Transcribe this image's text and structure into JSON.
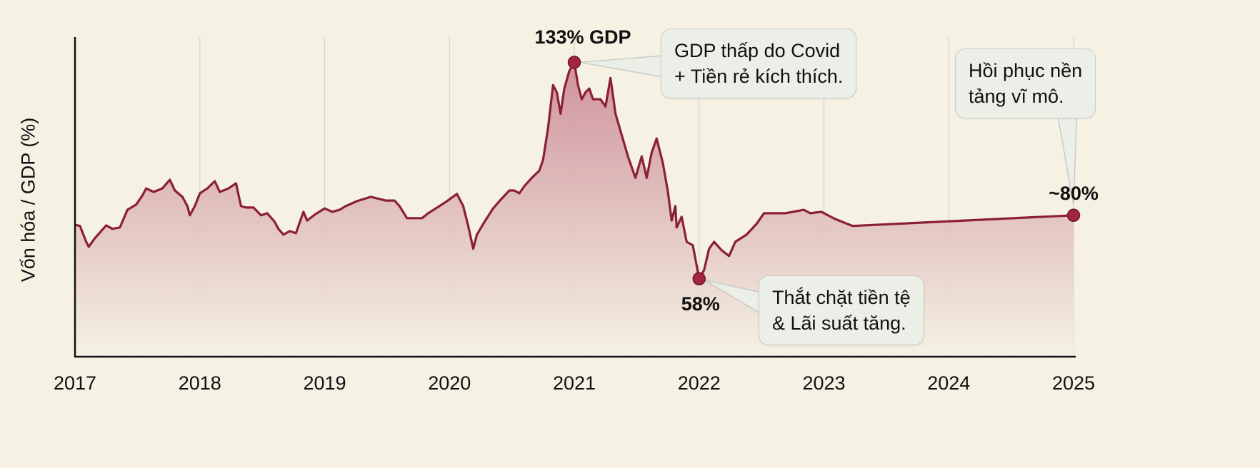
{
  "chart_data": {
    "type": "area",
    "title": "",
    "xlabel": "",
    "ylabel": "Vốn hóa / GDP (%)",
    "xlim": [
      2017,
      2025
    ],
    "ylim": [
      31,
      141
    ],
    "x_ticks": [
      "2017",
      "2018",
      "2019",
      "2020",
      "2021",
      "2022",
      "2023",
      "2024",
      "2025"
    ],
    "grid": "vertical",
    "colors": {
      "line": "#8b1f38",
      "marker": "#a3263f",
      "fill_top": "#c98390",
      "fill_bottom": "#f5f2e4",
      "background": "#f5f2e4",
      "grid": "#d8d6cc"
    },
    "series": [
      {
        "name": "Vốn hóa / GDP",
        "points": [
          [
            2017.0,
            76.7
          ],
          [
            2017.04,
            76.3
          ],
          [
            2017.09,
            70.8
          ],
          [
            2017.11,
            69.1
          ],
          [
            2017.16,
            72.1
          ],
          [
            2017.25,
            76.5
          ],
          [
            2017.3,
            75.3
          ],
          [
            2017.36,
            75.8
          ],
          [
            2017.42,
            81.9
          ],
          [
            2017.49,
            83.7
          ],
          [
            2017.54,
            86.9
          ],
          [
            2017.57,
            89.3
          ],
          [
            2017.63,
            88.1
          ],
          [
            2017.7,
            89.3
          ],
          [
            2017.76,
            92.3
          ],
          [
            2017.8,
            88.6
          ],
          [
            2017.86,
            86.4
          ],
          [
            2017.9,
            83.2
          ],
          [
            2017.92,
            80.0
          ],
          [
            2017.96,
            83.2
          ],
          [
            2018.0,
            87.6
          ],
          [
            2018.06,
            89.3
          ],
          [
            2018.12,
            91.8
          ],
          [
            2018.16,
            88.1
          ],
          [
            2018.23,
            89.3
          ],
          [
            2018.29,
            91.1
          ],
          [
            2018.33,
            83.2
          ],
          [
            2018.37,
            82.7
          ],
          [
            2018.43,
            82.7
          ],
          [
            2018.49,
            80.0
          ],
          [
            2018.54,
            80.7
          ],
          [
            2018.6,
            77.7
          ],
          [
            2018.63,
            75.3
          ],
          [
            2018.67,
            73.3
          ],
          [
            2018.72,
            74.5
          ],
          [
            2018.77,
            73.8
          ],
          [
            2018.83,
            81.2
          ],
          [
            2018.86,
            78.2
          ],
          [
            2018.92,
            80.2
          ],
          [
            2019.0,
            82.4
          ],
          [
            2019.06,
            81.2
          ],
          [
            2019.12,
            81.9
          ],
          [
            2019.17,
            83.2
          ],
          [
            2019.26,
            84.9
          ],
          [
            2019.37,
            86.4
          ],
          [
            2019.49,
            85.1
          ],
          [
            2019.56,
            85.1
          ],
          [
            2019.6,
            83.2
          ],
          [
            2019.66,
            79.0
          ],
          [
            2019.78,
            79.0
          ],
          [
            2019.83,
            80.7
          ],
          [
            2019.92,
            83.2
          ],
          [
            2019.98,
            84.9
          ],
          [
            2020.06,
            87.4
          ],
          [
            2020.11,
            83.2
          ],
          [
            2020.15,
            76.3
          ],
          [
            2020.19,
            68.4
          ],
          [
            2020.22,
            73.3
          ],
          [
            2020.28,
            77.7
          ],
          [
            2020.35,
            82.4
          ],
          [
            2020.4,
            84.9
          ],
          [
            2020.48,
            88.6
          ],
          [
            2020.52,
            88.6
          ],
          [
            2020.56,
            87.6
          ],
          [
            2020.6,
            90.1
          ],
          [
            2020.66,
            93.0
          ],
          [
            2020.72,
            95.5
          ],
          [
            2020.75,
            99.2
          ],
          [
            2020.79,
            110.3
          ],
          [
            2020.83,
            125.1
          ],
          [
            2020.86,
            122.6
          ],
          [
            2020.89,
            115.2
          ],
          [
            2020.92,
            123.9
          ],
          [
            2020.96,
            130.0
          ],
          [
            2021.0,
            133.0
          ],
          [
            2021.03,
            125.1
          ],
          [
            2021.06,
            120.2
          ],
          [
            2021.09,
            122.6
          ],
          [
            2021.12,
            123.9
          ],
          [
            2021.15,
            120.2
          ],
          [
            2021.21,
            120.2
          ],
          [
            2021.25,
            117.7
          ],
          [
            2021.29,
            127.6
          ],
          [
            2021.33,
            115.2
          ],
          [
            2021.38,
            107.8
          ],
          [
            2021.43,
            100.4
          ],
          [
            2021.49,
            93.0
          ],
          [
            2021.54,
            100.4
          ],
          [
            2021.58,
            93.0
          ],
          [
            2021.62,
            101.7
          ],
          [
            2021.66,
            106.6
          ],
          [
            2021.71,
            98.0
          ],
          [
            2021.75,
            88.1
          ],
          [
            2021.78,
            78.2
          ],
          [
            2021.81,
            83.2
          ],
          [
            2021.82,
            75.8
          ],
          [
            2021.86,
            79.5
          ],
          [
            2021.9,
            70.8
          ],
          [
            2021.95,
            69.6
          ],
          [
            2022.0,
            58.0
          ],
          [
            2022.04,
            61.0
          ],
          [
            2022.08,
            68.4
          ],
          [
            2022.12,
            70.8
          ],
          [
            2022.18,
            67.9
          ],
          [
            2022.24,
            65.9
          ],
          [
            2022.29,
            70.8
          ],
          [
            2022.38,
            73.3
          ],
          [
            2022.46,
            77.0
          ],
          [
            2022.52,
            80.7
          ],
          [
            2022.61,
            80.7
          ],
          [
            2022.69,
            80.7
          ],
          [
            2022.84,
            81.9
          ],
          [
            2022.89,
            80.7
          ],
          [
            2022.98,
            81.2
          ],
          [
            2023.09,
            78.7
          ],
          [
            2023.23,
            76.3
          ],
          [
            2025.0,
            80.0
          ]
        ]
      }
    ],
    "annotations": [
      {
        "label": "133% GDP",
        "x": 2021.0,
        "y": 133,
        "note_lines": [
          "GDP thấp do Covid",
          "+ Tiền rẻ kích thích."
        ]
      },
      {
        "label": "58%",
        "x": 2022.0,
        "y": 58,
        "note_lines": [
          "Thắt chặt tiền tệ",
          "& Lãi suất tăng."
        ]
      },
      {
        "label": "~80%",
        "x": 2025.0,
        "y": 80,
        "note_lines": [
          "Hồi phục nền",
          "tảng vĩ mô."
        ]
      }
    ]
  }
}
